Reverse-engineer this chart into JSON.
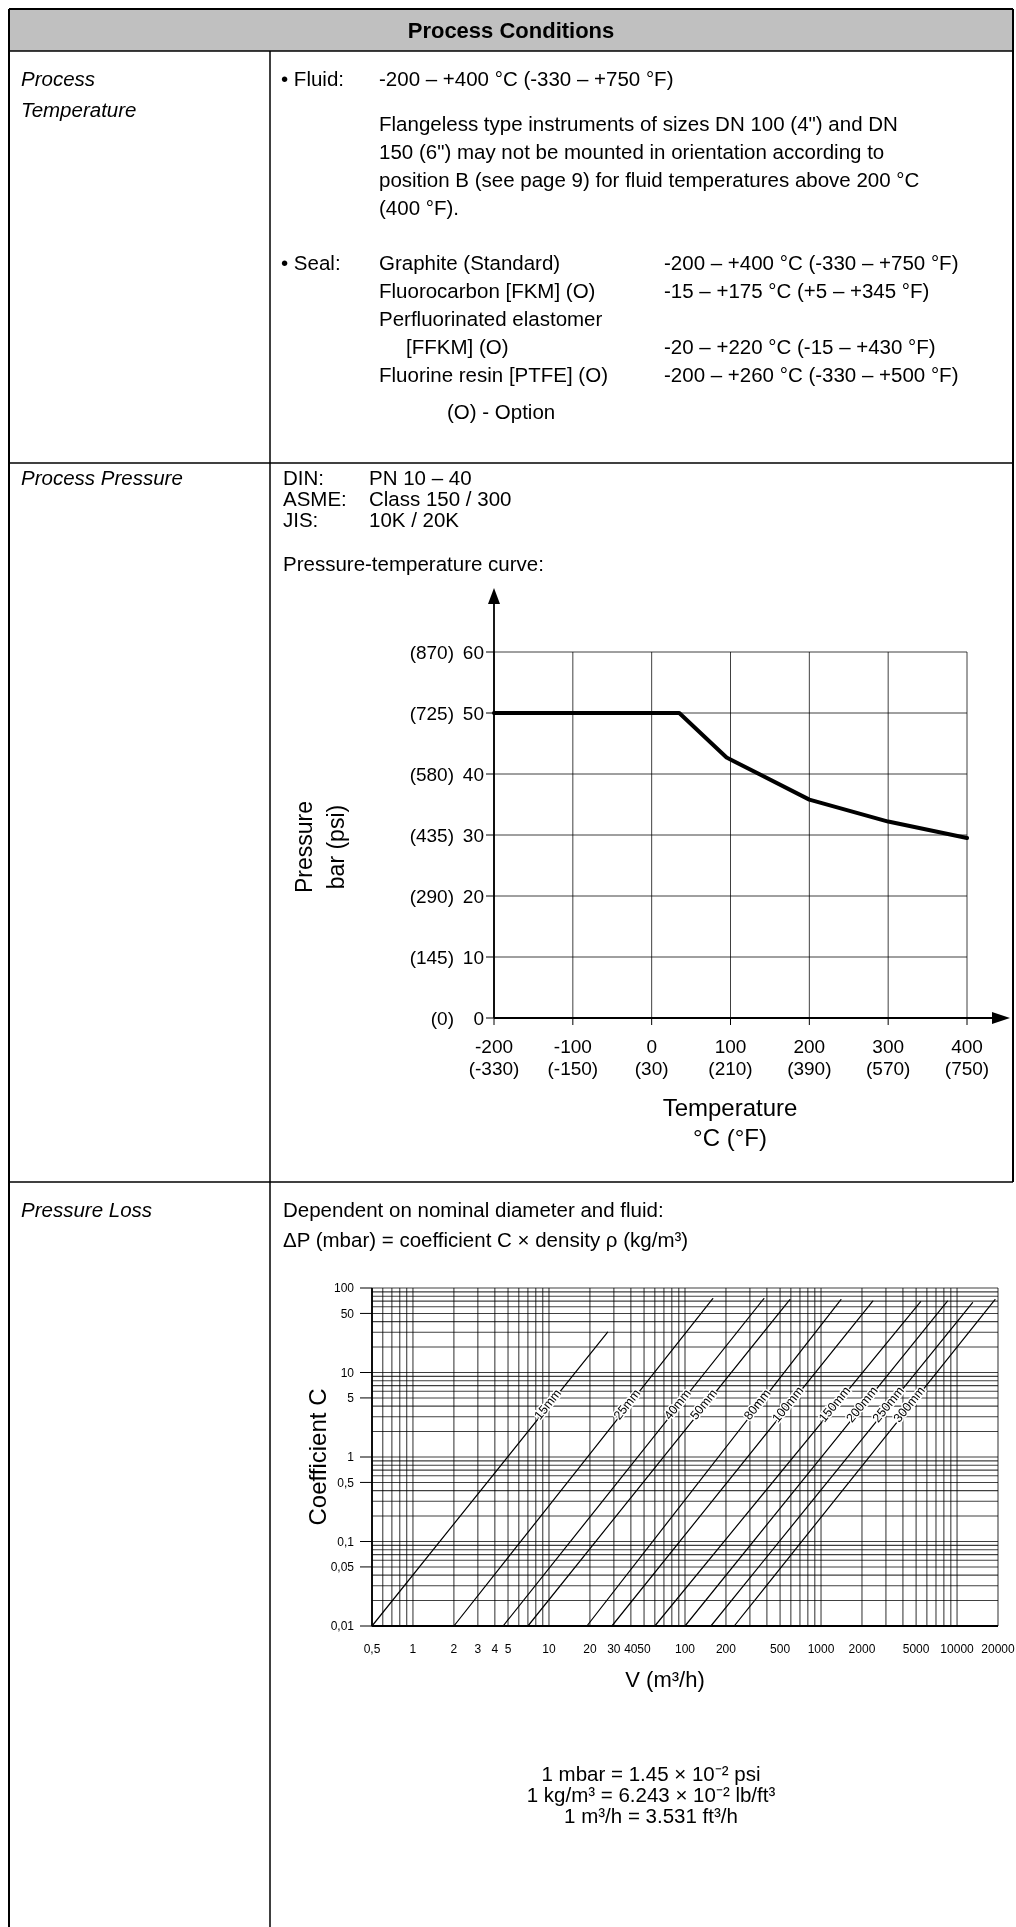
{
  "chart_data": [
    {
      "type": "other",
      "title": "Process Conditions",
      "annotations": [
        "Process\nTemperature",
        "• Fluid:",
        "-200 – +400 °C (-330 – +750 °F)",
        "Flangeless type instruments of sizes DN 100 (4\") and DN\n150 (6\") may not be mounted in orientation according to\nposition B (see page 9) for fluid temperatures above 200 °C\n(400 °F).",
        "• Seal:",
        "Graphite (Standard)",
        "-200 – +400 °C (-330 – +750 °F)",
        "Fluorocarbon [FKM] (O)",
        "-15 – +175 °C (+5 – +345 °F)",
        "Perfluorinated elastomer",
        "[FFKM] (O)",
        "-20 – +220 °C (-15 – +430 °F)",
        "Fluorine resin [PTFE] (O)",
        "-200 – +260 °C (-330 – +500 °F)",
        "(O) - Option",
        "Process Pressure",
        "DIN:",
        "PN 10 – 40",
        "ASME:",
        "Class 150 / 300",
        "JIS:",
        "10K / 20K",
        "Pressure Loss"
      ]
    },
    {
      "type": "line",
      "title": "Pressure-temperature curve:",
      "xlabel": "Temperature\n°C (°F)",
      "y2label": "Pressure\nbar (psi)",
      "grid": true,
      "xlim": [
        -200,
        400
      ],
      "ylim": [
        0,
        60
      ],
      "xticks": [
        -200,
        -100,
        0,
        100,
        200,
        300,
        400
      ],
      "yticks": [
        0,
        10,
        20,
        30,
        40,
        50,
        60
      ],
      "x2lim": [
        -330,
        750
      ],
      "x2ticks": [
        {
          "value": -330,
          "label": "(-330)"
        },
        {
          "value": -150,
          "label": "(-150)"
        },
        {
          "value": 30,
          "label": "(30)"
        },
        {
          "value": 210,
          "label": "(210)"
        },
        {
          "value": 390,
          "label": "(390)"
        },
        {
          "value": 570,
          "label": "(570)"
        },
        {
          "value": 750,
          "label": "(750)"
        }
      ],
      "y2lim": [
        0,
        870
      ],
      "y2ticks": [
        {
          "value": 0,
          "label": "(0)"
        },
        {
          "value": 145,
          "label": "(145)"
        },
        {
          "value": 290,
          "label": "(290)"
        },
        {
          "value": 435,
          "label": "(435)"
        },
        {
          "value": 580,
          "label": "(580)"
        },
        {
          "value": 725,
          "label": "(725)"
        },
        {
          "value": 870,
          "label": "(870)"
        }
      ],
      "x": [
        -200,
        35,
        95,
        200,
        300,
        400
      ],
      "series": [
        {
          "color": "#000000",
          "values": [
            50,
            50,
            42.7,
            35.8,
            32.2,
            29.5
          ]
        }
      ]
    },
    {
      "type": "line",
      "title": "Dependent on nominal diameter and fluid:",
      "subtitle": "ΔP (mbar) = coefficient C × density ρ (kg/m³)",
      "xlabel": "V (m³/h)",
      "ylabel": "Coefficient C",
      "log": "xy",
      "grid": true,
      "xlim": [
        0.5,
        20000
      ],
      "ylim": [
        0.01,
        100
      ],
      "xticks": [
        {
          "value": 0.5,
          "label": "0,5"
        },
        1,
        2,
        3,
        4,
        5,
        10,
        20,
        30,
        40,
        50,
        100,
        200,
        500,
        1000,
        2000,
        5000,
        10000,
        20000
      ],
      "yticks": [
        {
          "value": 0.01,
          "label": "0,01"
        },
        {
          "value": 0.05,
          "label": "0,05"
        },
        {
          "value": 0.1,
          "label": "0,1"
        },
        {
          "value": 0.5,
          "label": "0,5"
        },
        1,
        5,
        10,
        50,
        100
      ],
      "series": [
        {
          "name": "15mm",
          "color": "#000000",
          "x": [
            0.5,
            27
          ],
          "values": [
            0.01,
            30
          ]
        },
        {
          "name": "25mm",
          "color": "#000000",
          "x": [
            2,
            160
          ],
          "values": [
            0.01,
            75
          ]
        },
        {
          "name": "40mm",
          "color": "#000000",
          "x": [
            4.6,
            380
          ],
          "values": [
            0.01,
            75
          ]
        },
        {
          "name": "50mm",
          "color": "#000000",
          "x": [
            7,
            590
          ],
          "values": [
            0.01,
            73
          ]
        },
        {
          "name": "80mm",
          "color": "#000000",
          "x": [
            19,
            1400
          ],
          "values": [
            0.01,
            73
          ]
        },
        {
          "name": "100mm",
          "color": "#000000",
          "x": [
            29,
            2400
          ],
          "values": [
            0.01,
            70
          ]
        },
        {
          "name": "150mm",
          "color": "#000000",
          "x": [
            60,
            5400
          ],
          "values": [
            0.01,
            69
          ]
        },
        {
          "name": "200mm",
          "color": "#000000",
          "x": [
            100,
            8500
          ],
          "values": [
            0.01,
            70
          ]
        },
        {
          "name": "250mm",
          "color": "#000000",
          "x": [
            155,
            13000
          ],
          "values": [
            0.01,
            67
          ]
        },
        {
          "name": "300mm",
          "color": "#000000",
          "x": [
            230,
            19000
          ],
          "values": [
            0.01,
            73
          ]
        }
      ],
      "annotations": [
        "1 mbar = 1.45 × 10⁻² psi",
        "1 kg/m³ = 6.243 × 10⁻² lb/ft³",
        "1 m³/h = 3.531 ft³/h"
      ]
    }
  ]
}
